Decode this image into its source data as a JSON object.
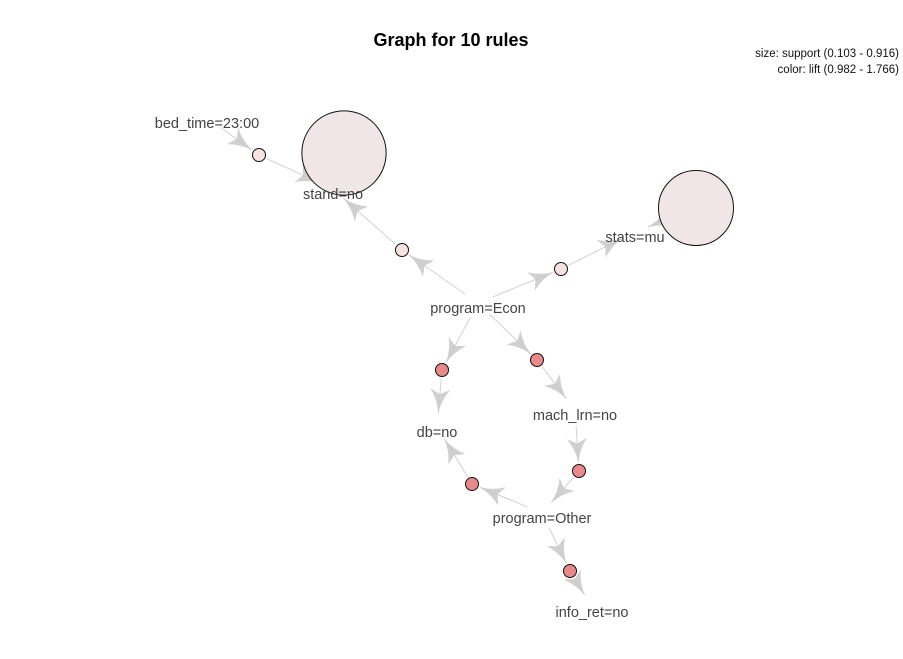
{
  "title": "Graph for 10 rules",
  "legend": {
    "size_label": "size: support (0.103 - 0.916)",
    "color_label": "color: lift (0.982 - 1.766)"
  },
  "items": [
    {
      "id": "bed_time",
      "label": "bed_time=23:00"
    },
    {
      "id": "stand",
      "label": "stand=no"
    },
    {
      "id": "stats",
      "label": "stats=mu"
    },
    {
      "id": "econ",
      "label": "program=Econ"
    },
    {
      "id": "db",
      "label": "db=no"
    },
    {
      "id": "mach",
      "label": "mach_lrn=no"
    },
    {
      "id": "other",
      "label": "program=Other"
    },
    {
      "id": "info",
      "label": "info_ret=no"
    }
  ],
  "rules": [
    {
      "id": "r1",
      "lhs": [
        "bed_time"
      ],
      "rhs": "stand",
      "support": 0.103,
      "lift": 1.05,
      "color": "#f7e2e2"
    },
    {
      "id": "r2",
      "lhs": [],
      "rhs": "stand",
      "support": 0.916,
      "lift": 1.0,
      "color": "#f1e6e6"
    },
    {
      "id": "r3",
      "lhs": [
        "econ"
      ],
      "rhs": "stand",
      "support": 0.103,
      "lift": 1.05,
      "color": "#f7e2e2"
    },
    {
      "id": "r4",
      "lhs": [
        "econ"
      ],
      "rhs": "stats",
      "support": 0.103,
      "lift": 1.05,
      "color": "#f7e2e2"
    },
    {
      "id": "r5",
      "lhs": [],
      "rhs": "stats",
      "support": 0.72,
      "lift": 0.982,
      "color": "#f1e6e6"
    },
    {
      "id": "r6",
      "lhs": [
        "econ"
      ],
      "rhs": "db",
      "support": 0.103,
      "lift": 1.7,
      "color": "#e88a8a"
    },
    {
      "id": "r7",
      "lhs": [
        "econ"
      ],
      "rhs": "mach",
      "support": 0.103,
      "lift": 1.7,
      "color": "#e88a8a"
    },
    {
      "id": "r8",
      "lhs": [
        "mach"
      ],
      "rhs": "other",
      "support": 0.103,
      "lift": 1.7,
      "color": "#e88a8a"
    },
    {
      "id": "r9",
      "lhs": [
        "other"
      ],
      "rhs": "db",
      "support": 0.103,
      "lift": 1.7,
      "color": "#e88a8a"
    },
    {
      "id": "r10",
      "lhs": [
        "other"
      ],
      "rhs": "info",
      "support": 0.103,
      "lift": 1.766,
      "color": "#e88a8a"
    }
  ]
}
